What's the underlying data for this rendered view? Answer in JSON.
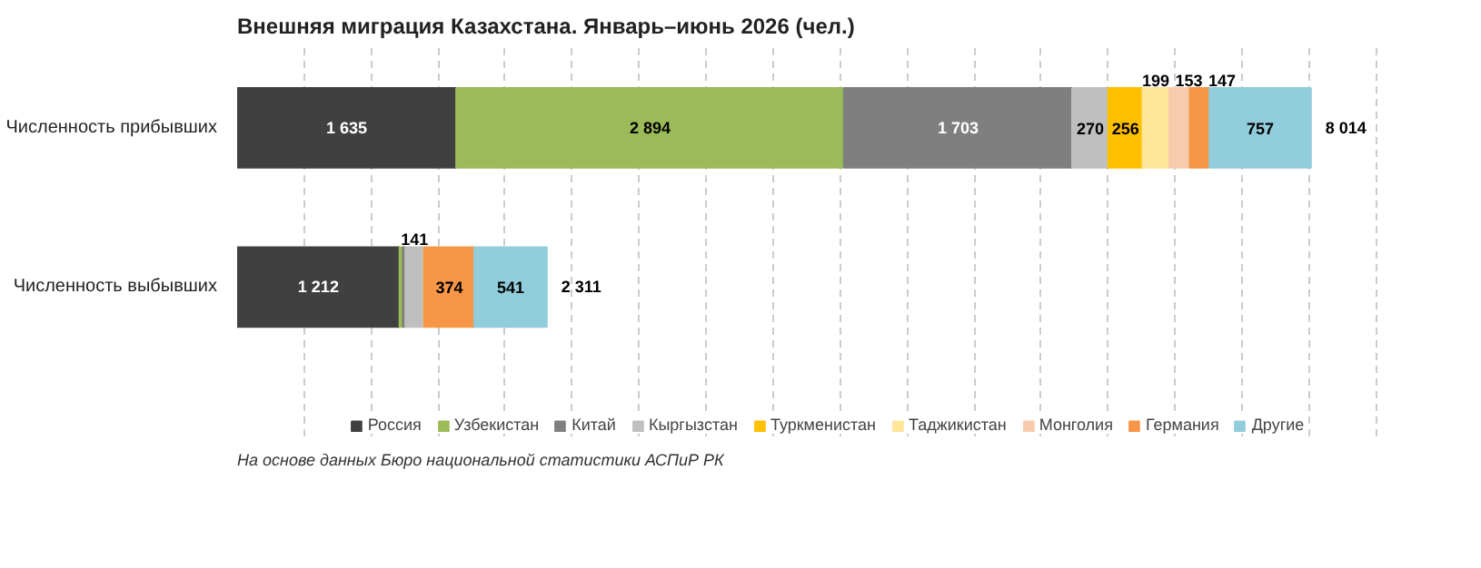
{
  "chart_data": {
    "type": "bar",
    "orientation": "horizontal",
    "stacked": true,
    "title": "Внешняя миграция Казахстана. Январь–июнь 2026 (чел.)",
    "categories": [
      "Численность прибывших",
      "Численность выбывших"
    ],
    "tick_labels": "y",
    "grid": "x",
    "legend": "bottom",
    "series": [
      {
        "name": "Россия",
        "color": "#404040",
        "values": [
          1635,
          1212
        ],
        "value_labels": [
          "1 635",
          "1 212"
        ]
      },
      {
        "name": "Узбекистан",
        "color": "#9bbb59",
        "values": [
          2894,
          25
        ],
        "value_labels": [
          "2 894",
          null
        ]
      },
      {
        "name": "Китай",
        "color": "#7f7f7f",
        "values": [
          1703,
          18
        ],
        "value_labels": [
          "1 703",
          null
        ]
      },
      {
        "name": "Кыргызстан",
        "color": "#bfbfbf",
        "values": [
          270,
          141
        ],
        "value_labels": [
          "270",
          "141"
        ]
      },
      {
        "name": "Туркменистан",
        "color": "#ffc000",
        "values": [
          256,
          0
        ],
        "value_labels": [
          "256",
          null
        ]
      },
      {
        "name": "Таджикистан",
        "color": "#ffe699",
        "values": [
          199,
          0
        ],
        "value_labels": [
          "199",
          null
        ]
      },
      {
        "name": "Монголия",
        "color": "#f8cbad",
        "values": [
          153,
          0
        ],
        "value_labels": [
          "153",
          null
        ]
      },
      {
        "name": "Германия",
        "color": "#f79646",
        "values": [
          147,
          374
        ],
        "value_labels": [
          "147",
          "374"
        ]
      },
      {
        "name": "Другие",
        "color": "#92cddc",
        "values": [
          757,
          541
        ],
        "value_labels": [
          "757",
          "541"
        ]
      }
    ],
    "totals": [
      "8 014",
      "2 311"
    ],
    "annotations": [
      "На основе данных Бюро национальной статистики АСПиР РК"
    ]
  }
}
